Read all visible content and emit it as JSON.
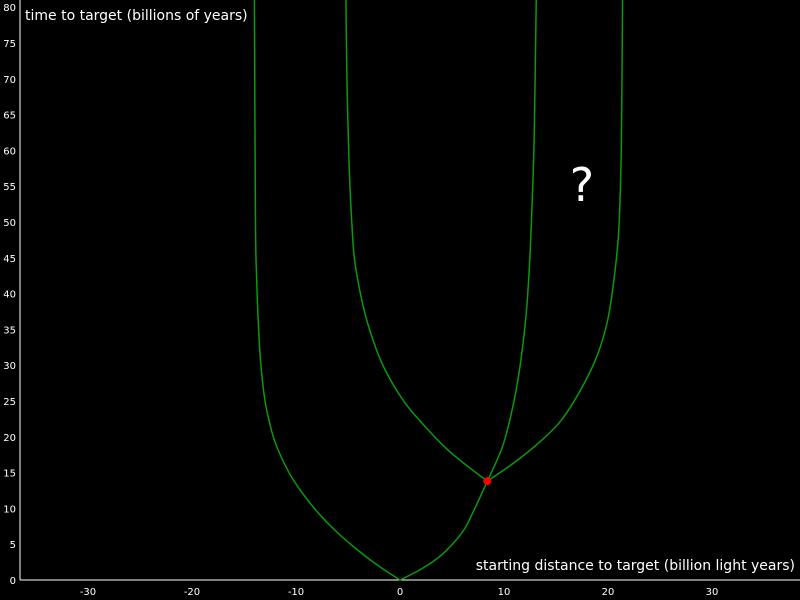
{
  "chart_data": {
    "type": "line",
    "xlabel": "starting distance to target (billion light years)",
    "ylabel": "time to target (billions of years)",
    "xlim": [
      -36.5,
      38.5
    ],
    "ylim": [
      0,
      81
    ],
    "x_ticks": [
      -30,
      -20,
      -10,
      0,
      10,
      20,
      30
    ],
    "y_ticks": [
      0,
      5,
      10,
      15,
      20,
      25,
      30,
      35,
      40,
      45,
      50,
      55,
      60,
      65,
      70,
      75,
      80
    ],
    "annotation": "?",
    "line_color": "#0a9a0a",
    "marker_color": "#ff0000",
    "marker": {
      "x": 8.4,
      "y": 13.8
    },
    "series": [
      {
        "points": [
          [
            0,
            0
          ],
          [
            -2,
            1.9
          ],
          [
            -4,
            4.1
          ],
          [
            -6,
            6.6
          ],
          [
            -8,
            9.6
          ],
          [
            -10,
            13.4
          ],
          [
            -11,
            15.9
          ],
          [
            -12,
            19.2
          ],
          [
            -12.5,
            21.7
          ],
          [
            -13,
            25.2
          ],
          [
            -13.4,
            30.4
          ],
          [
            -13.6,
            35.2
          ],
          [
            -13.8,
            42.8
          ],
          [
            -13.9,
            50.7
          ],
          [
            -14,
            81
          ]
        ]
      },
      {
        "points": [
          [
            0,
            0
          ],
          [
            2,
            1.5
          ],
          [
            4,
            3.5
          ],
          [
            6,
            6.7
          ],
          [
            7,
            9.4
          ],
          [
            8.4,
            13.8
          ],
          [
            9.8,
            18.4
          ],
          [
            10.6,
            22.6
          ],
          [
            11.3,
            27.6
          ],
          [
            11.8,
            32.7
          ],
          [
            12.2,
            38.3
          ],
          [
            12.5,
            45.4
          ],
          [
            12.7,
            52.5
          ],
          [
            12.9,
            61.7
          ],
          [
            13.1,
            81
          ]
        ]
      },
      {
        "points": [
          [
            8.4,
            13.8
          ],
          [
            6.4,
            16
          ],
          [
            4.5,
            18.3
          ],
          [
            2.5,
            21.3
          ],
          [
            0.5,
            24.7
          ],
          [
            -1.2,
            28.7
          ],
          [
            -2.3,
            32.3
          ],
          [
            -3.4,
            37.4
          ],
          [
            -4.3,
            44
          ],
          [
            -4.6,
            49
          ],
          [
            -4.9,
            58.3
          ],
          [
            -5.1,
            69.9
          ],
          [
            -5.2,
            81
          ]
        ]
      },
      {
        "points": [
          [
            8.4,
            13.8
          ],
          [
            10.9,
            16.3
          ],
          [
            13.3,
            19.1
          ],
          [
            15.5,
            22.3
          ],
          [
            17.5,
            26.9
          ],
          [
            19,
            31.5
          ],
          [
            20,
            36.5
          ],
          [
            20.6,
            42.3
          ],
          [
            21,
            48
          ],
          [
            21.2,
            55
          ],
          [
            21.3,
            62.7
          ],
          [
            21.4,
            81
          ]
        ]
      }
    ]
  }
}
